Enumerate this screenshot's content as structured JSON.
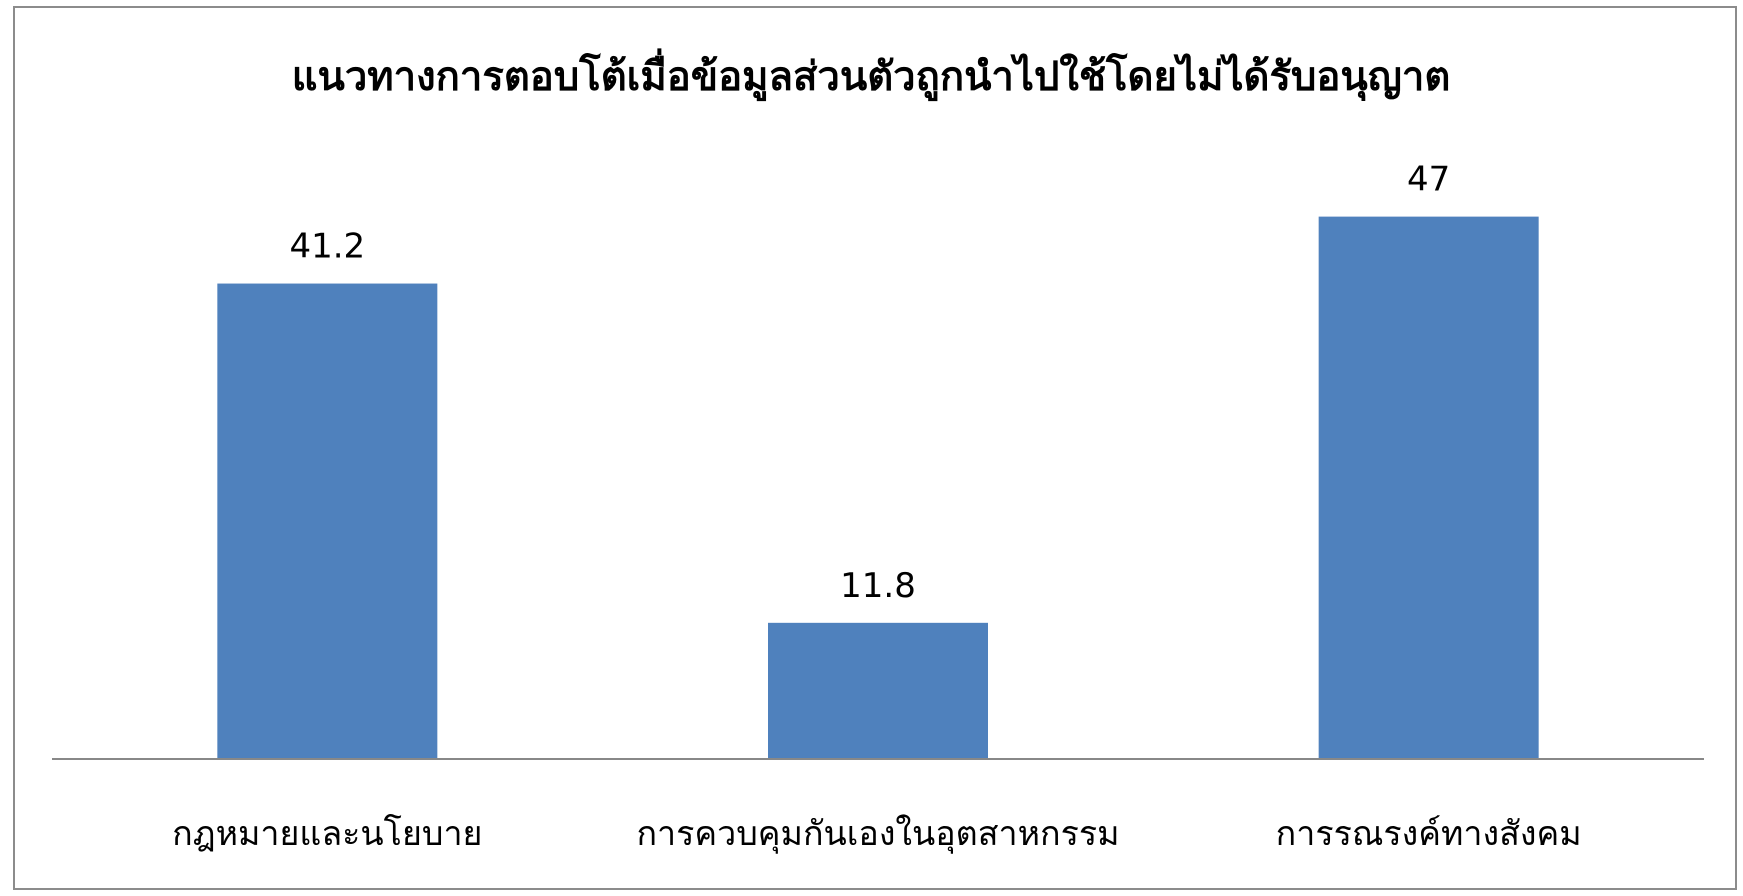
{
  "chart_data": {
    "type": "bar",
    "title": "แนวทางการตอบโต้เมื่อข้อมูลส่วนตัวถูกนำไปใช้โดยไม่ได้รับอนุญาต",
    "categories": [
      "กฎหมายและนโยบาย",
      "การควบคุมกันเองในอุตสาหกรรม",
      "การรณรงค์ทางสังคม"
    ],
    "values": [
      41.2,
      11.8,
      47
    ],
    "value_labels": [
      "41.2",
      "11.8",
      "47"
    ],
    "xlabel": "",
    "ylabel": "",
    "ylim": [
      0,
      50
    ],
    "grid": false,
    "legend": "none",
    "colors": {
      "bar": "#4F81BD",
      "axis": "#888888",
      "frame": "#8c8c8c"
    }
  }
}
